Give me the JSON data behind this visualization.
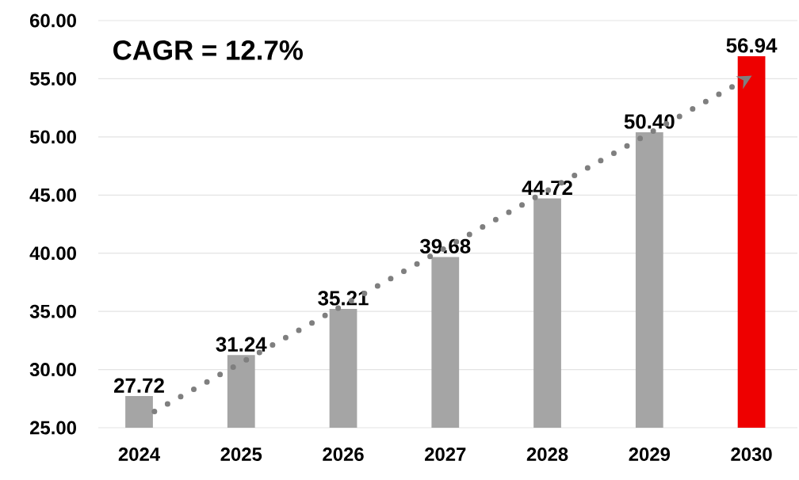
{
  "chart_data": {
    "type": "bar",
    "x": [
      2024,
      2025,
      2026,
      2027,
      2028,
      2029,
      2030
    ],
    "xlim": [
      2023.6,
      2030.45
    ],
    "xticks": [
      2024,
      2025,
      2026,
      2027,
      2028,
      2029,
      2030
    ],
    "ylim": [
      25,
      60
    ],
    "yticks": [
      {
        "value": 25,
        "label": "25.00"
      },
      {
        "value": 30,
        "label": "30.00"
      },
      {
        "value": 35,
        "label": "35.00"
      },
      {
        "value": 40,
        "label": "40.00"
      },
      {
        "value": 45,
        "label": "45.00"
      },
      {
        "value": 50,
        "label": "50.00"
      },
      {
        "value": 55,
        "label": "55.00"
      },
      {
        "value": 60,
        "label": "60.00"
      }
    ],
    "grid": "y",
    "annotations": [
      "CAGR = 12.7%"
    ],
    "series": [
      {
        "colors": [
          "#a5a5a5",
          "#a5a5a5",
          "#a5a5a5",
          "#a5a5a5",
          "#a5a5a5",
          "#a5a5a5",
          "#ee0000"
        ],
        "values": [
          27.72,
          31.24,
          35.21,
          39.68,
          44.72,
          50.4,
          56.94
        ],
        "value_labels": [
          "27.72",
          "31.24",
          "35.21",
          "39.68",
          "44.72",
          "50.40",
          "56.94"
        ]
      },
      {
        "type": "line",
        "x": [
          2024.15,
          2029.95
        ],
        "values": [
          26.4,
          55.0
        ],
        "color": "#7f7f7f",
        "line_style": "dotted"
      }
    ]
  }
}
